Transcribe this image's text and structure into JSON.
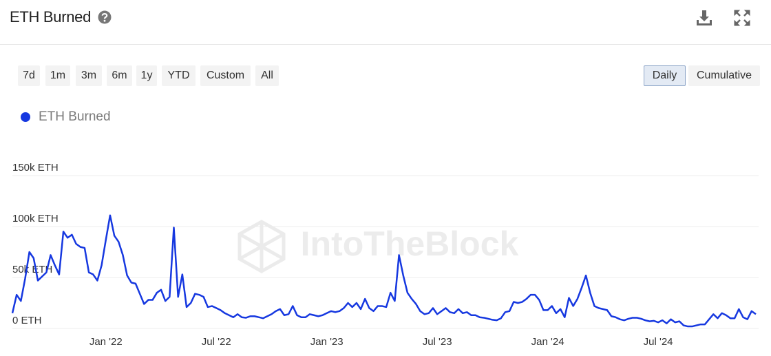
{
  "controls": {
    "ranges": [
      "7d",
      "1m",
      "3m",
      "6m",
      "1y",
      "YTD",
      "Custom",
      "All"
    ],
    "views": [
      "Daily",
      "Cumulative"
    ]
  },
  "watermark": "IntoTheBlock",
  "chart_data": {
    "type": "line",
    "title": "ETH Burned",
    "categories": [
      null,
      null,
      null,
      null,
      null,
      null,
      null,
      null,
      null,
      null,
      null,
      null,
      null,
      null,
      null,
      null,
      null,
      null,
      null,
      null,
      null,
      null,
      "Jan '22",
      null,
      null,
      null,
      null,
      null,
      null,
      null,
      null,
      null,
      null,
      null,
      null,
      null,
      null,
      null,
      null,
      null,
      null,
      null,
      null,
      null,
      null,
      null,
      null,
      null,
      "Jul '22",
      null,
      null,
      null,
      null,
      null,
      null,
      null,
      null,
      null,
      null,
      null,
      null,
      null,
      null,
      null,
      null,
      null,
      null,
      null,
      null,
      null,
      null,
      null,
      null,
      null,
      "Jan '23",
      null,
      null,
      null,
      null,
      null,
      null,
      null,
      null,
      null,
      null,
      null,
      null,
      null,
      null,
      null,
      null,
      null,
      null,
      null,
      null,
      null,
      null,
      null,
      null,
      null,
      "Jul '23",
      null,
      null,
      null,
      null,
      null,
      null,
      null,
      null,
      null,
      null,
      null,
      null,
      null,
      null,
      null,
      null,
      null,
      null,
      null,
      null,
      null,
      null,
      null,
      null,
      null,
      "Jan '24",
      null,
      null,
      null,
      null,
      null,
      null,
      null,
      null,
      null,
      null,
      null,
      null,
      null,
      null,
      null,
      null,
      null,
      null,
      null,
      null,
      null,
      null,
      null,
      null,
      null,
      "Jul '24",
      null,
      null,
      null,
      null,
      null,
      null,
      null,
      null,
      null,
      null,
      null,
      null,
      null,
      null,
      null,
      null,
      null,
      null,
      null,
      null,
      null,
      null,
      null
    ],
    "series": [
      {
        "name": "ETH Burned",
        "color": "#1638e0",
        "values": [
          15000,
          33000,
          27000,
          49000,
          75000,
          69000,
          47000,
          51000,
          55000,
          72000,
          62000,
          53000,
          95000,
          89000,
          92000,
          83000,
          80000,
          79000,
          55000,
          53000,
          47000,
          62000,
          87000,
          111000,
          91000,
          85000,
          72000,
          52000,
          45000,
          44000,
          34000,
          24000,
          28000,
          28000,
          35000,
          38000,
          27000,
          31000,
          99000,
          31000,
          53000,
          21000,
          25000,
          34000,
          33000,
          31000,
          21000,
          22000,
          20000,
          18000,
          15000,
          13000,
          11000,
          14000,
          11000,
          10500,
          12000,
          12000,
          11000,
          10000,
          12000,
          14000,
          17000,
          19000,
          13000,
          14000,
          22000,
          13000,
          11000,
          11000,
          14000,
          13000,
          12000,
          13000,
          15000,
          17000,
          16000,
          17000,
          20000,
          25000,
          21000,
          25000,
          19000,
          29000,
          20000,
          17000,
          22000,
          22000,
          21000,
          35000,
          27000,
          72000,
          52000,
          35000,
          29000,
          24000,
          17000,
          14000,
          15000,
          20000,
          14000,
          17000,
          20000,
          16000,
          15000,
          19000,
          15000,
          16000,
          13000,
          13000,
          11000,
          10500,
          9500,
          8500,
          8000,
          10000,
          16000,
          17000,
          26000,
          25000,
          26000,
          29000,
          33000,
          33000,
          28000,
          18000,
          18000,
          22000,
          15000,
          19000,
          11000,
          30000,
          22000,
          29000,
          40000,
          52000,
          35000,
          22000,
          20000,
          19000,
          18000,
          12000,
          11000,
          9000,
          8000,
          9500,
          10500,
          10500,
          9500,
          8000,
          7000,
          7500,
          6000,
          8000,
          5000,
          9000,
          6000,
          7000,
          3000,
          2000,
          2000,
          3000,
          4000,
          4000,
          9000,
          14000,
          10000,
          15000,
          13000,
          10000,
          10000,
          19000,
          11000,
          9000,
          17000,
          14000
        ]
      }
    ],
    "ylim": [
      0,
      150000
    ],
    "yticks": [
      {
        "value": 0,
        "label": "0 ETH"
      },
      {
        "value": 50000,
        "label": "50k ETH"
      },
      {
        "value": 100000,
        "label": "100k ETH"
      },
      {
        "value": 150000,
        "label": "150k ETH"
      }
    ],
    "grid": true,
    "legend": "top-left"
  }
}
